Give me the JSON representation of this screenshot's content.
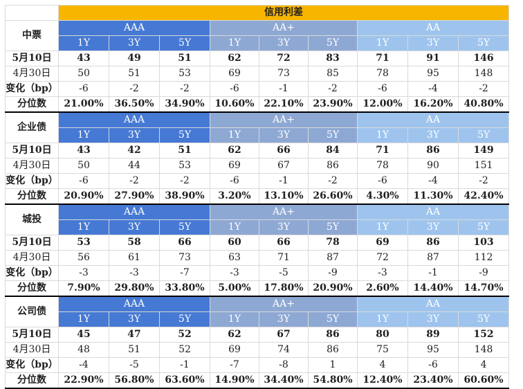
{
  "title": "信用利差",
  "grades": [
    "AAA",
    "AA+",
    "AA"
  ],
  "tenors": [
    "1Y",
    "3Y",
    "5Y"
  ],
  "row_labels": {
    "current": "5月10日",
    "prev": "4月30日",
    "change": "变化（bp）",
    "pct": "分位数"
  },
  "sections": [
    {
      "name": "中票",
      "current": [
        "43",
        "49",
        "51",
        "62",
        "72",
        "83",
        "71",
        "91",
        "146"
      ],
      "prev": [
        "50",
        "51",
        "53",
        "69",
        "73",
        "85",
        "78",
        "95",
        "148"
      ],
      "change": [
        "-6",
        "-2",
        "-2",
        "-6",
        "-1",
        "-2",
        "-6",
        "-4",
        "-2"
      ],
      "pct": [
        "21.00%",
        "36.50%",
        "34.90%",
        "10.60%",
        "22.10%",
        "23.90%",
        "12.00%",
        "16.20%",
        "40.80%"
      ]
    },
    {
      "name": "企业债",
      "current": [
        "43",
        "42",
        "51",
        "62",
        "66",
        "84",
        "71",
        "86",
        "149"
      ],
      "prev": [
        "50",
        "44",
        "53",
        "69",
        "67",
        "86",
        "78",
        "90",
        "151"
      ],
      "change": [
        "-6",
        "-2",
        "-2",
        "-6",
        "-1",
        "-2",
        "-6",
        "-4",
        "-2"
      ],
      "pct": [
        "20.90%",
        "27.90%",
        "38.90%",
        "3.20%",
        "13.10%",
        "26.60%",
        "4.30%",
        "11.30%",
        "42.40%"
      ]
    },
    {
      "name": "城投",
      "current": [
        "53",
        "58",
        "66",
        "60",
        "66",
        "78",
        "69",
        "86",
        "103"
      ],
      "prev": [
        "56",
        "61",
        "73",
        "63",
        "71",
        "87",
        "72",
        "87",
        "112"
      ],
      "change": [
        "-3",
        "-3",
        "-7",
        "-3",
        "-5",
        "-9",
        "-3",
        "-1",
        "-9"
      ],
      "pct": [
        "7.90%",
        "29.80%",
        "33.80%",
        "5.00%",
        "17.80%",
        "20.90%",
        "2.60%",
        "14.40%",
        "14.70%"
      ]
    },
    {
      "name": "公司债",
      "current": [
        "45",
        "47",
        "52",
        "62",
        "67",
        "86",
        "80",
        "89",
        "152"
      ],
      "prev": [
        "48",
        "51",
        "52",
        "69",
        "74",
        "86",
        "75",
        "95",
        "148"
      ],
      "change": [
        "-4",
        "-5",
        "-1",
        "-7",
        "-8",
        "1",
        "4",
        "-6",
        "4"
      ],
      "pct": [
        "22.90%",
        "56.80%",
        "63.60%",
        "14.90%",
        "34.40%",
        "54.80%",
        "12.40%",
        "23.40%",
        "60.60%"
      ]
    }
  ],
  "colors": {
    "title_bg": "#f7b500",
    "aaa_bg": "#4679d4",
    "aa_plus_bg": "#8ea8d4",
    "aa_bg": "#9ec4ee"
  }
}
